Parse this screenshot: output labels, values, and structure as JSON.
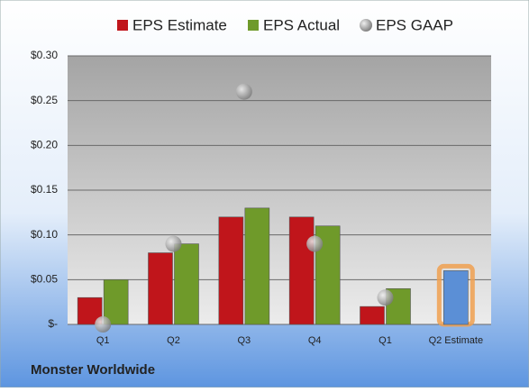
{
  "chart_data": {
    "type": "bar",
    "source": "Monster Worldwide",
    "categories": [
      "Q1",
      "Q2",
      "Q3",
      "Q4",
      "Q1",
      "Q2 Estimate"
    ],
    "series": [
      {
        "name": "EPS Estimate",
        "color": "#c0151b",
        "colors": [
          "#c0151b",
          "#c0151b",
          "#c0151b",
          "#c0151b",
          "#c0151b",
          "#5b8fd6"
        ],
        "highlight_outline": "#f0a050",
        "values": [
          0.03,
          0.08,
          0.12,
          0.12,
          0.02,
          0.06
        ]
      },
      {
        "name": "EPS Actual",
        "color": "#6f9a2a",
        "values": [
          0.05,
          0.09,
          0.13,
          0.11,
          0.04,
          null
        ]
      },
      {
        "name": "EPS GAAP",
        "color": "#a8a8a8",
        "marker": "circle",
        "values": [
          0.0,
          0.09,
          0.26,
          0.09,
          0.03,
          null
        ]
      }
    ],
    "ylim": [
      0,
      0.3
    ],
    "yticks": [
      {
        "value": 0,
        "label": "$-"
      },
      {
        "value": 0.05,
        "label": "$0.05"
      },
      {
        "value": 0.1,
        "label": "$0.10"
      },
      {
        "value": 0.15,
        "label": "$0.15"
      },
      {
        "value": 0.2,
        "label": "$0.20"
      },
      {
        "value": 0.25,
        "label": "$0.25"
      },
      {
        "value": 0.3,
        "label": "$0.30"
      }
    ],
    "grid": true
  }
}
